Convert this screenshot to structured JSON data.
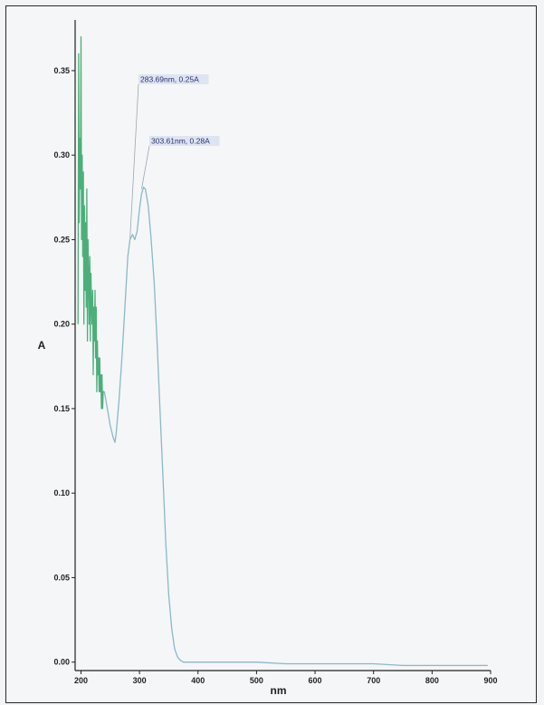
{
  "chart_data": {
    "type": "line",
    "xlabel": "nm",
    "ylabel": "A",
    "xlim": [
      190,
      900
    ],
    "ylim": [
      -0.005,
      0.38
    ],
    "x_ticks": [
      "200",
      "300",
      "400",
      "500",
      "600",
      "700",
      "800",
      "900"
    ],
    "y_ticks": [
      "0.00",
      "0.05",
      "0.10",
      "0.15",
      "0.20",
      "0.25",
      "0.30",
      "0.35"
    ],
    "grid": false,
    "colors": {
      "noisy": "#4caf7a",
      "smooth": "#8ab8c8",
      "annotation_box": "#dfe4f2"
    },
    "annotations": [
      {
        "label": "283.69nm, 0.25A",
        "x": 283.69,
        "y": 0.25
      },
      {
        "label": "303.61nm, 0.28A",
        "x": 303.61,
        "y": 0.28
      }
    ],
    "series": [
      {
        "style": "noisy",
        "x": [
          195,
          196,
          197,
          198,
          199,
          200,
          201,
          202,
          203,
          204,
          205,
          206,
          207,
          208,
          209,
          210,
          211,
          212,
          213,
          214,
          215,
          216,
          217,
          218,
          219,
          220,
          221,
          222,
          223,
          224,
          225,
          226,
          227,
          228,
          229,
          230,
          231,
          232,
          233,
          234,
          235,
          236,
          237,
          238,
          239,
          240
        ],
        "y": [
          0.2,
          0.36,
          0.26,
          0.31,
          0.28,
          0.37,
          0.25,
          0.3,
          0.24,
          0.29,
          0.2,
          0.27,
          0.22,
          0.26,
          0.21,
          0.28,
          0.19,
          0.25,
          0.23,
          0.2,
          0.24,
          0.19,
          0.23,
          0.21,
          0.2,
          0.22,
          0.17,
          0.21,
          0.19,
          0.22,
          0.18,
          0.21,
          0.16,
          0.19,
          0.17,
          0.18,
          0.16,
          0.18,
          0.16,
          0.17,
          0.15,
          0.17,
          0.15,
          0.16,
          0.16,
          0.16
        ]
      },
      {
        "style": "smooth",
        "x": [
          240,
          245,
          250,
          255,
          258,
          260,
          265,
          270,
          275,
          280,
          283.69,
          288,
          292,
          296,
          300,
          303.61,
          307,
          310,
          315,
          320,
          325,
          330,
          335,
          340,
          345,
          350,
          355,
          360,
          365,
          370,
          375,
          380,
          390,
          400,
          450,
          500,
          550,
          600,
          650,
          700,
          750,
          800,
          850,
          895
        ],
        "y": [
          0.16,
          0.15,
          0.14,
          0.133,
          0.13,
          0.135,
          0.155,
          0.18,
          0.21,
          0.24,
          0.25,
          0.253,
          0.25,
          0.255,
          0.268,
          0.277,
          0.281,
          0.28,
          0.27,
          0.25,
          0.225,
          0.19,
          0.15,
          0.11,
          0.07,
          0.04,
          0.02,
          0.008,
          0.003,
          0.001,
          0.0,
          0.0,
          0.0,
          0.0,
          0.0,
          0.0,
          -0.001,
          -0.001,
          -0.001,
          -0.001,
          -0.002,
          -0.002,
          -0.002,
          -0.002
        ]
      }
    ]
  }
}
